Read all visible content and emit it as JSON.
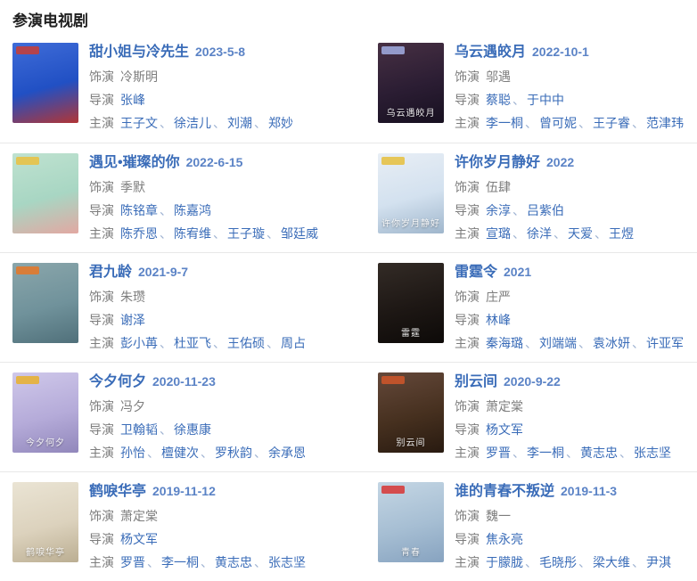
{
  "page": {
    "section_title": "参演电视剧"
  },
  "ui": {
    "separator": "、",
    "link_color": "#3a6cb8",
    "date_color": "#5b83c6",
    "label_color": "#7d7d7d",
    "divider_color": "#e8e8e8"
  },
  "labels": {
    "role": "饰演",
    "director": "导演",
    "cast": "主演"
  },
  "dramas": [
    {
      "title": "甜小姐与冷先生",
      "date": "2023-5-8",
      "role": "冷斯明",
      "directors": [
        "张峰"
      ],
      "cast": [
        "王子文",
        "徐洁儿",
        "刘潮",
        "郑妙"
      ],
      "poster": {
        "colors": [
          "#3f6cd8",
          "#2150c4",
          "#b23535"
        ],
        "badge": "#bf4040",
        "overlay": ""
      }
    },
    {
      "title": "乌云遇皎月",
      "date": "2022-10-1",
      "role": "邬遇",
      "directors": [
        "蔡聪",
        "于中中"
      ],
      "cast": [
        "李一桐",
        "曾可妮",
        "王子睿",
        "范津玮"
      ],
      "poster": {
        "colors": [
          "#473043",
          "#2b1d33",
          "#171020"
        ],
        "badge": "#9aa4d6",
        "overlay": "乌云遇皎月"
      }
    },
    {
      "title": "遇见•璀璨的你",
      "date": "2022-6-15",
      "role": "季默",
      "directors": [
        "陈铭章",
        "陈嘉鸿"
      ],
      "cast": [
        "陈乔恩",
        "陈宥维",
        "王子璇",
        "邹廷威"
      ],
      "poster": {
        "colors": [
          "#bfe2d0",
          "#a8d6c3",
          "#e2a8a2"
        ],
        "badge": "#e6c24a",
        "overlay": ""
      }
    },
    {
      "title": "许你岁月静好",
      "date": "2022",
      "role": "伍肆",
      "directors": [
        "余淳",
        "吕紫伯"
      ],
      "cast": [
        "宣璐",
        "徐洋",
        "天爱",
        "王煜"
      ],
      "poster": {
        "colors": [
          "#e8eef5",
          "#d3e1ef",
          "#9fb6cc"
        ],
        "badge": "#e6c24a",
        "overlay": "许你岁月静好"
      }
    },
    {
      "title": "君九龄",
      "date": "2021-9-7",
      "role": "朱瓒",
      "directors": [
        "谢泽"
      ],
      "cast": [
        "彭小苒",
        "杜亚飞",
        "王佑硕",
        "周占"
      ],
      "poster": {
        "colors": [
          "#8aa6ab",
          "#70929b",
          "#50707a"
        ],
        "badge": "#e07a30",
        "overlay": ""
      }
    },
    {
      "title": "雷霆令",
      "date": "2021",
      "role": "庄严",
      "directors": [
        "林峰"
      ],
      "cast": [
        "秦海璐",
        "刘端端",
        "袁冰妍",
        "许亚军"
      ],
      "poster": {
        "colors": [
          "#332b26",
          "#1d1714",
          "#0d0a08"
        ],
        "badge": null,
        "overlay": "雷霆"
      }
    },
    {
      "title": "今夕何夕",
      "date": "2020-11-23",
      "role": "冯夕",
      "directors": [
        "卫翰韬",
        "徐惠康"
      ],
      "cast": [
        "孙怡",
        "檀健次",
        "罗秋韵",
        "余承恩"
      ],
      "poster": {
        "colors": [
          "#cfc8ea",
          "#b5abd9",
          "#9187bb"
        ],
        "badge": "#e6b23a",
        "overlay": "今夕何夕"
      }
    },
    {
      "title": "别云间",
      "date": "2020-9-22",
      "role": "萧定棠",
      "directors": [
        "杨文军"
      ],
      "cast": [
        "罗晋",
        "李一桐",
        "黄志忠",
        "张志坚"
      ],
      "poster": {
        "colors": [
          "#64483a",
          "#46301f",
          "#281a10"
        ],
        "badge": "#c8552a",
        "overlay": "别云间"
      }
    },
    {
      "title": "鹤唳华亭",
      "date": "2019-11-12",
      "role": "萧定棠",
      "directors": [
        "杨文军"
      ],
      "cast": [
        "罗晋",
        "李一桐",
        "黄志忠",
        "张志坚"
      ],
      "poster": {
        "colors": [
          "#eae4d4",
          "#dcd2bd",
          "#bbae92"
        ],
        "badge": null,
        "overlay": "鹤唳华亭"
      }
    },
    {
      "title": "谁的青春不叛逆",
      "date": "2019-11-3",
      "role": "魏一",
      "directors": [
        "焦永亮"
      ],
      "cast": [
        "于朦胧",
        "毛晓彤",
        "梁大维",
        "尹淇"
      ],
      "poster": {
        "colors": [
          "#c4d6e4",
          "#a6bed3",
          "#87a3c0"
        ],
        "badge": "#d64040",
        "overlay": "青春"
      }
    }
  ]
}
